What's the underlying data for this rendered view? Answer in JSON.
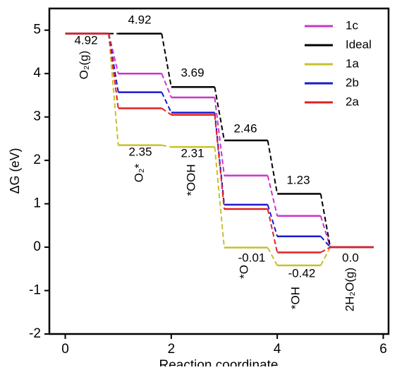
{
  "chart_data": {
    "type": "energy-levels",
    "x_label": "Reaction coordinate",
    "y_label": "ΔG (eV)",
    "x": [
      0,
      1,
      2,
      3,
      4,
      5
    ],
    "series": [
      {
        "name": "1c",
        "color": "#cc33cc",
        "values": [
          4.92,
          4.0,
          3.45,
          1.65,
          0.72,
          0
        ]
      },
      {
        "name": "Ideal",
        "color": "#000000",
        "values": [
          4.92,
          4.92,
          3.69,
          2.46,
          1.23,
          0
        ]
      },
      {
        "name": "1a",
        "color": "#c8c02a",
        "values": [
          4.92,
          2.35,
          2.31,
          -0.01,
          -0.42,
          0
        ]
      },
      {
        "name": "2b",
        "color": "#1a1acc",
        "values": [
          4.92,
          3.57,
          3.1,
          0.98,
          0.25,
          0
        ]
      },
      {
        "name": "2a",
        "color": "#e02020",
        "values": [
          4.92,
          3.2,
          3.05,
          0.88,
          -0.12,
          0
        ]
      }
    ],
    "annotations": [
      "4.92",
      "O₂(g)",
      "4.92",
      "3.69",
      "2.46",
      "1.23",
      "2.35",
      "O₂*",
      "2.31",
      "*OOH",
      "-0.01",
      "*O",
      "-0.42",
      "*OH",
      "0.0",
      "2H₂O(g)"
    ],
    "xlim": [
      -0.3,
      6.1
    ],
    "ylim": [
      -2,
      5.5
    ],
    "xticks": [
      0,
      2,
      4,
      6
    ],
    "yticks": [
      -2,
      -1,
      0,
      1,
      2,
      3,
      4,
      5
    ],
    "legend": "upper right"
  }
}
